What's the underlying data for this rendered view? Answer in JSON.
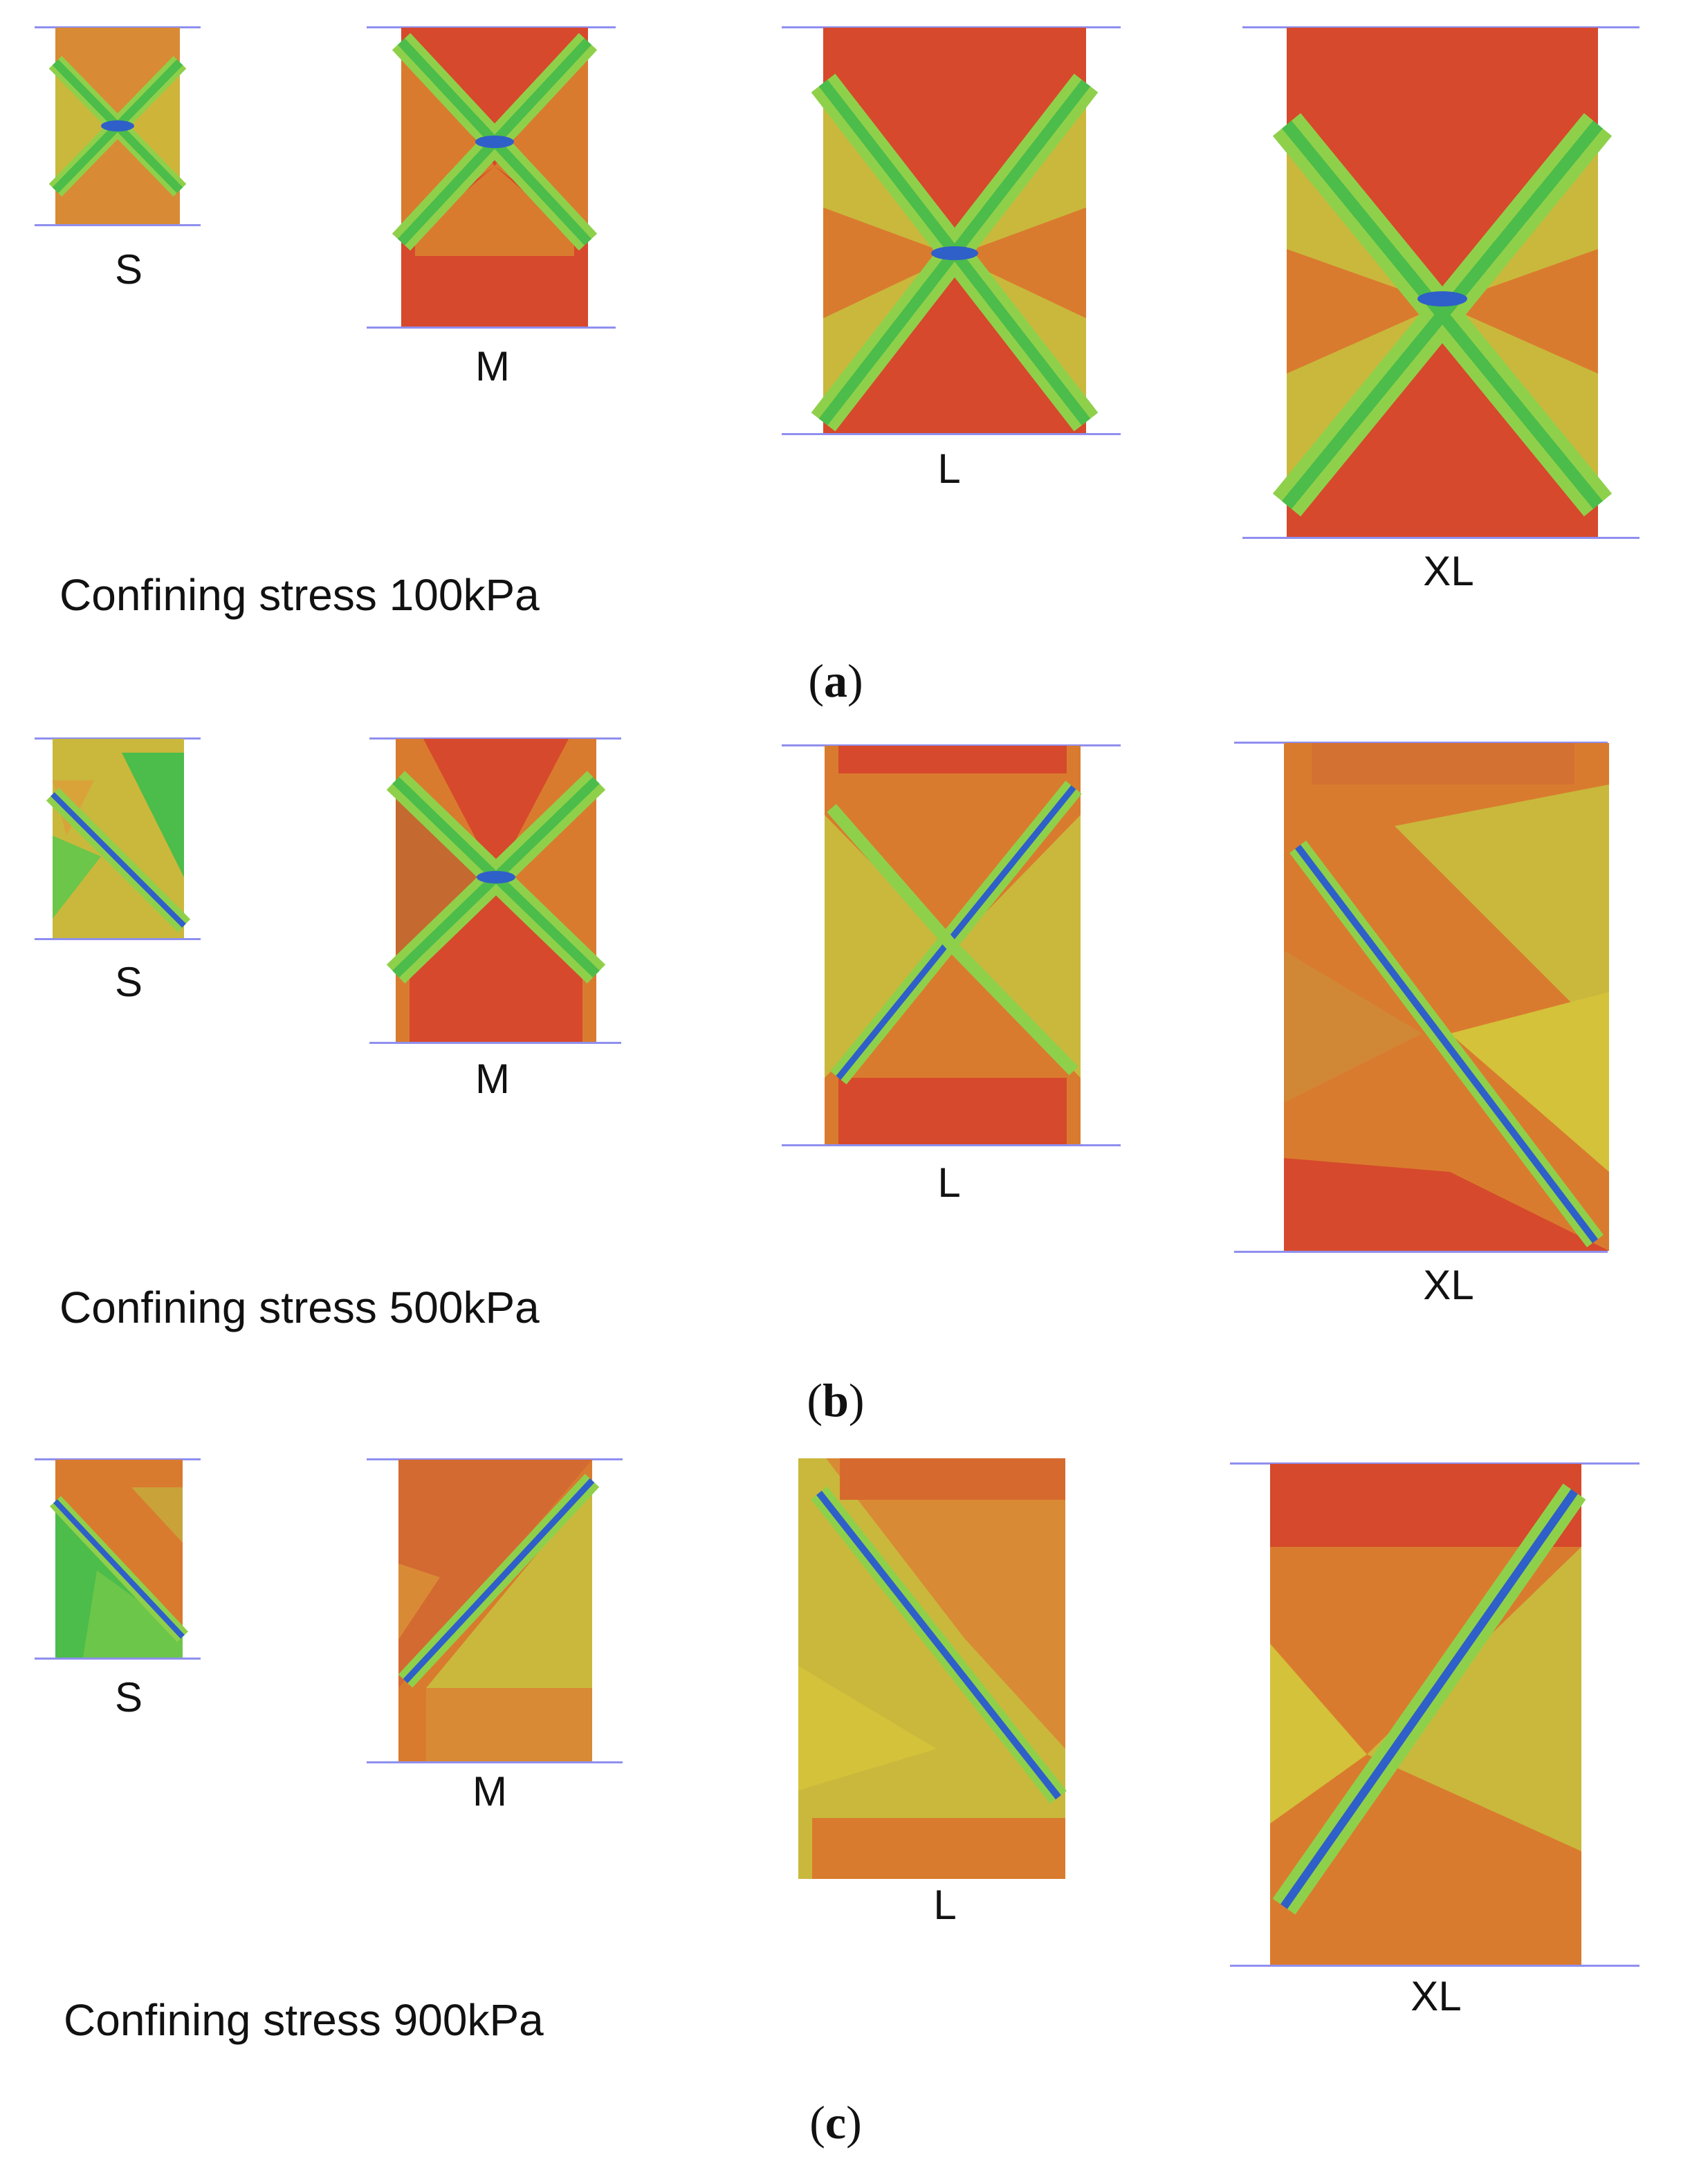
{
  "colors": {
    "red": "#d6492c",
    "orange": "#d97b2e",
    "yellow": "#c9c23a",
    "light_green": "#8fd04b",
    "green": "#4cbc4a",
    "blue": "#2f5fc8",
    "plate_line": "#8f8ff0"
  },
  "panels": [
    {
      "letter": "a",
      "caption": "Confining stress 100kPa",
      "specimens": [
        {
          "size": "S",
          "pattern": "x-shear"
        },
        {
          "size": "M",
          "pattern": "x-shear"
        },
        {
          "size": "L",
          "pattern": "x-shear"
        },
        {
          "size": "XL",
          "pattern": "x-shear"
        }
      ]
    },
    {
      "letter": "b",
      "caption": "Confining stress 500kPa",
      "specimens": [
        {
          "size": "S",
          "pattern": "single-shear"
        },
        {
          "size": "M",
          "pattern": "x-shear"
        },
        {
          "size": "L",
          "pattern": "x-shear"
        },
        {
          "size": "XL",
          "pattern": "single-shear"
        }
      ]
    },
    {
      "letter": "c",
      "caption": "Confining stress 900kPa",
      "specimens": [
        {
          "size": "S",
          "pattern": "single-shear"
        },
        {
          "size": "M",
          "pattern": "single-shear"
        },
        {
          "size": "L",
          "pattern": "single-shear"
        },
        {
          "size": "XL",
          "pattern": "single-shear"
        }
      ]
    }
  ]
}
